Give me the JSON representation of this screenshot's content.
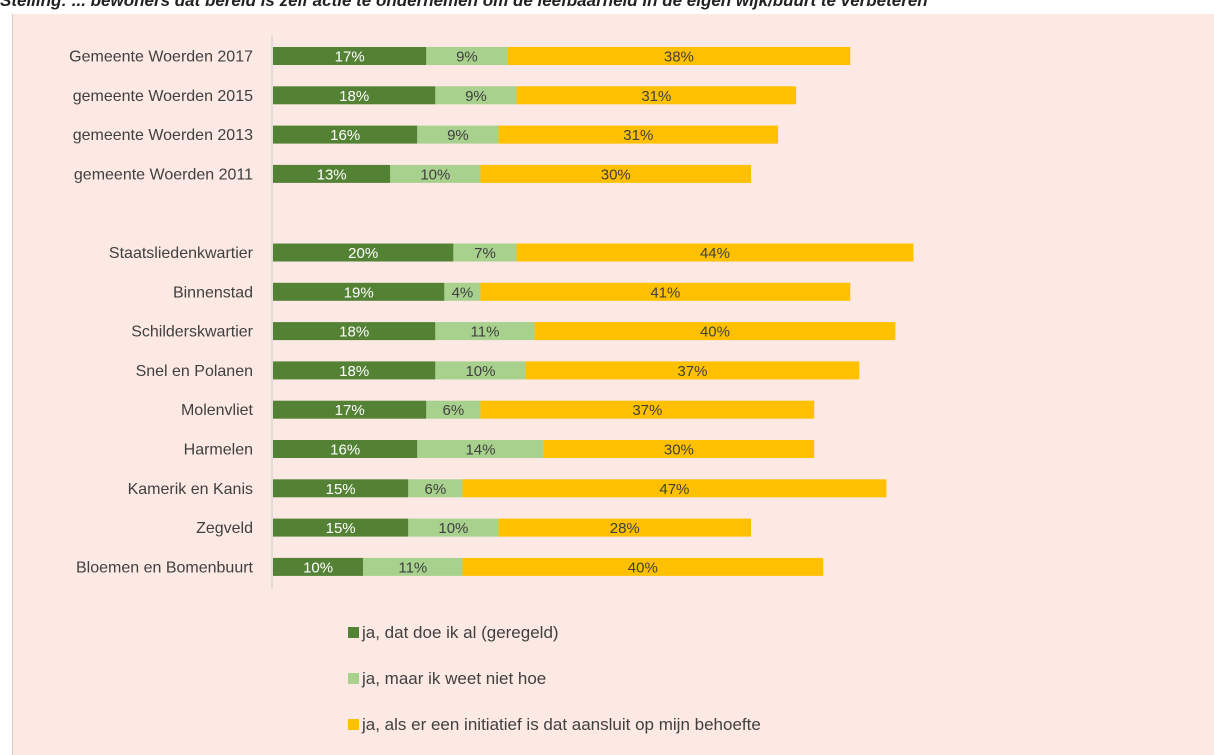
{
  "title": "Stelling: ... bewoners dat bereid is zelf actie te ondernemen om de leefbaarheid in de eigen wijk/buurt te verbeteren",
  "chart_data": {
    "type": "bar",
    "orientation": "horizontal",
    "stacked": true,
    "unit": "%",
    "categories": [
      "Gemeente Woerden 2017",
      "gemeente Woerden 2015",
      "gemeente Woerden 2013",
      "gemeente Woerden 2011",
      "",
      "Staatsliedenkwartier",
      "Binnenstad",
      "Schilderskwartier",
      "Snel en Polanen",
      "Molenvliet",
      "Harmelen",
      "Kamerik en Kanis",
      "Zegveld",
      "Bloemen en Bomenbuurt"
    ],
    "series": [
      {
        "name": "ja, dat doe ik al (geregeld)",
        "color": "#548235",
        "label_color": "#ffffff",
        "values": [
          17,
          18,
          16,
          13,
          null,
          20,
          19,
          18,
          18,
          17,
          16,
          15,
          15,
          10
        ]
      },
      {
        "name": "ja, maar ik weet niet hoe",
        "color": "#a9d18e",
        "label_color": "#404040",
        "values": [
          9,
          9,
          9,
          10,
          null,
          7,
          4,
          11,
          10,
          6,
          14,
          6,
          10,
          11
        ]
      },
      {
        "name": "ja, als er een initiatief is dat aansluit op mijn behoefte",
        "color": "#ffc000",
        "label_color": "#404040",
        "values": [
          38,
          31,
          31,
          30,
          null,
          44,
          41,
          40,
          37,
          37,
          30,
          47,
          28,
          40
        ]
      }
    ],
    "legend_position": "bottom",
    "grid": false
  }
}
